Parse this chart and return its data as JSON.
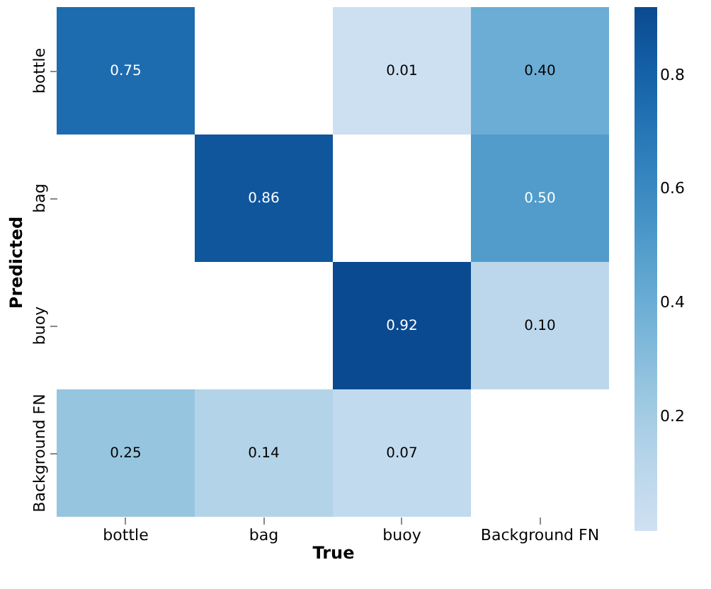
{
  "chart_data": {
    "type": "heatmap",
    "xlabel": "True",
    "ylabel": "Predicted",
    "categories": [
      "bottle",
      "bag",
      "buoy",
      "Background FN"
    ],
    "y_categories": [
      "bottle",
      "bag",
      "buoy",
      "Background FN"
    ],
    "cells": [
      [
        0.75,
        null,
        0.01,
        0.4
      ],
      [
        null,
        0.86,
        null,
        0.5
      ],
      [
        null,
        null,
        0.92,
        0.1
      ],
      [
        0.25,
        0.14,
        0.07,
        null
      ]
    ],
    "cell_labels": [
      [
        "0.75",
        null,
        "0.01",
        "0.40"
      ],
      [
        null,
        "0.86",
        null,
        "0.50"
      ],
      [
        null,
        null,
        "0.92",
        "0.10"
      ],
      [
        "0.25",
        "0.14",
        "0.07",
        null
      ]
    ],
    "clim": [
      0,
      0.92
    ],
    "cticks": [
      0.2,
      0.4,
      0.6,
      0.8
    ]
  }
}
